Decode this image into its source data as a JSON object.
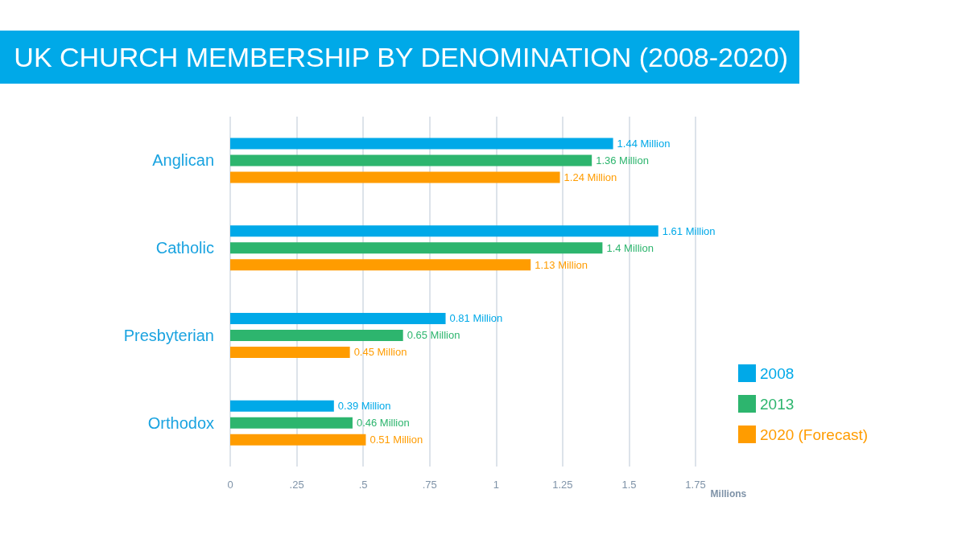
{
  "chart_data": {
    "type": "bar",
    "orientation": "horizontal",
    "title": "UK CHURCH MEMBERSHIP BY DENOMINATION (2008-2020)",
    "xlabel": "Millions",
    "categories": [
      "Anglican",
      "Catholic",
      "Presbyterian",
      "Orthodox"
    ],
    "series": [
      {
        "name": "2008",
        "color": "#00a9e8",
        "values": [
          1.44,
          1.61,
          0.81,
          0.39
        ],
        "value_labels": [
          "1.44 Million",
          "1.61 Million",
          "0.81 Million",
          "0.39 Million"
        ]
      },
      {
        "name": "2013",
        "color": "#2db56e",
        "values": [
          1.36,
          1.4,
          0.65,
          0.46
        ],
        "value_labels": [
          "1.36 Million",
          "1.4 Million",
          "0.65 Million",
          "0.46 Million"
        ]
      },
      {
        "name": "2020 (Forecast)",
        "color": "#ff9c00",
        "values": [
          1.24,
          1.13,
          0.45,
          0.51
        ],
        "value_labels": [
          "1.24 Million",
          "1.13 Million",
          "0.45 Million",
          "0.51 Million"
        ]
      }
    ],
    "xlim": [
      0,
      1.75
    ],
    "xticks": [
      0,
      {
        "value": 0.25,
        "label": ".25"
      },
      {
        "value": 0.5,
        "label": ".5"
      },
      {
        "value": 0.75,
        "label": ".75"
      },
      1,
      1.25,
      1.5,
      1.75
    ],
    "grid": "x",
    "legend": "right"
  }
}
